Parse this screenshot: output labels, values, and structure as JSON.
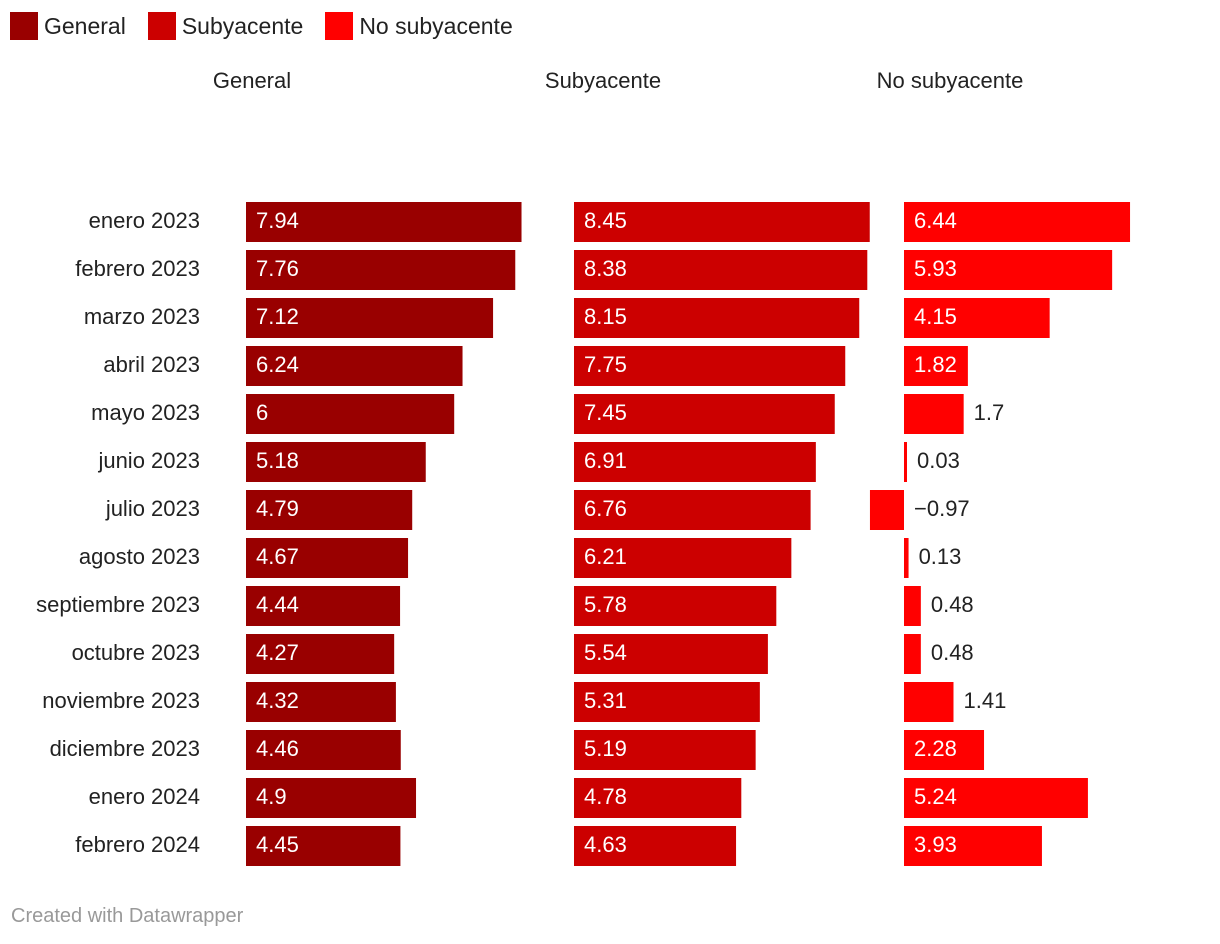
{
  "chart_data": {
    "type": "bar",
    "legend": [
      {
        "label": "General",
        "color": "#990000"
      },
      {
        "label": "Subyacente",
        "color": "#cc0000"
      },
      {
        "label": "No subyacente",
        "color": "#ff0000"
      }
    ],
    "categories": [
      "enero 2023",
      "febrero 2023",
      "marzo 2023",
      "abril 2023",
      "mayo 2023",
      "junio 2023",
      "julio 2023",
      "agosto 2023",
      "septiembre 2023",
      "octubre 2023",
      "noviembre 2023",
      "diciembre 2023",
      "enero 2024",
      "febrero 2024"
    ],
    "series": [
      {
        "name": "General",
        "color": "#990000",
        "values": [
          7.94,
          7.76,
          7.12,
          6.24,
          6,
          5.18,
          4.79,
          4.67,
          4.44,
          4.27,
          4.32,
          4.46,
          4.9,
          4.45
        ],
        "labels": [
          "7.94",
          "7.76",
          "7.12",
          "6.24",
          "6",
          "5.18",
          "4.79",
          "4.67",
          "4.44",
          "4.27",
          "4.32",
          "4.46",
          "4.9",
          "4.45"
        ]
      },
      {
        "name": "Subyacente",
        "color": "#cc0000",
        "values": [
          8.45,
          8.38,
          8.15,
          7.75,
          7.45,
          6.91,
          6.76,
          6.21,
          5.78,
          5.54,
          5.31,
          5.19,
          4.78,
          4.63
        ],
        "labels": [
          "8.45",
          "8.38",
          "8.15",
          "7.75",
          "7.45",
          "6.91",
          "6.76",
          "6.21",
          "5.78",
          "5.54",
          "5.31",
          "5.19",
          "4.78",
          "4.63"
        ]
      },
      {
        "name": "No subyacente",
        "color": "#ff0000",
        "values": [
          6.44,
          5.93,
          4.15,
          1.82,
          1.7,
          0.03,
          -0.97,
          0.13,
          0.48,
          0.48,
          1.41,
          2.28,
          5.24,
          3.93
        ],
        "labels": [
          "6.44",
          "5.93",
          "4.15",
          "1.82",
          "1.7",
          "0.03",
          "−0.97",
          "0.13",
          "0.48",
          "0.48",
          "1.41",
          "2.28",
          "5.24",
          "3.93"
        ]
      }
    ]
  },
  "footer": {
    "credit": "Created with Datawrapper"
  }
}
